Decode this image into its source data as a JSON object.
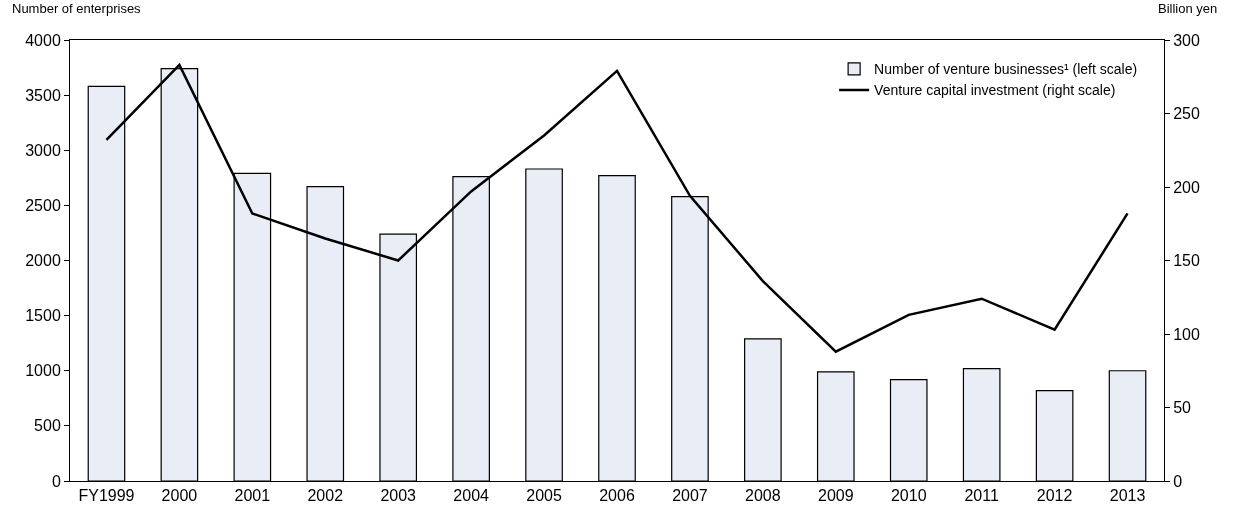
{
  "chart_data": {
    "type": "bar",
    "ylabel": "Number of enterprises",
    "y2label": "Billion yen",
    "categories": [
      "FY1999",
      "2000",
      "2001",
      "2002",
      "2003",
      "2004",
      "2005",
      "2006",
      "2007",
      "2008",
      "2009",
      "2010",
      "2011",
      "2012",
      "2013"
    ],
    "series": [
      {
        "name": "Number of venture businesses¹ (left scale)",
        "color": "#e9edf6",
        "values": [
          3580,
          3740,
          2790,
          2670,
          2240,
          2760,
          2830,
          2770,
          2580,
          1290,
          990,
          920,
          1020,
          820,
          1000
        ]
      },
      {
        "name": "Venture capital investment (right scale)",
        "type": "line",
        "axis": "y2",
        "color": "#000000",
        "values": [
          232,
          283,
          182,
          165,
          150,
          197,
          235,
          279,
          194,
          136,
          88,
          113,
          124,
          103,
          182
        ]
      }
    ],
    "ylim": [
      0,
      4000
    ],
    "yticks": [
      0,
      500,
      1000,
      1500,
      2000,
      2500,
      3000,
      3500,
      4000
    ],
    "y2lim": [
      0,
      300
    ],
    "y2ticks": [
      0,
      50,
      100,
      150,
      200,
      250,
      300
    ],
    "grid": false,
    "legend": "top right",
    "marker": "none",
    "line_style": "solid"
  }
}
